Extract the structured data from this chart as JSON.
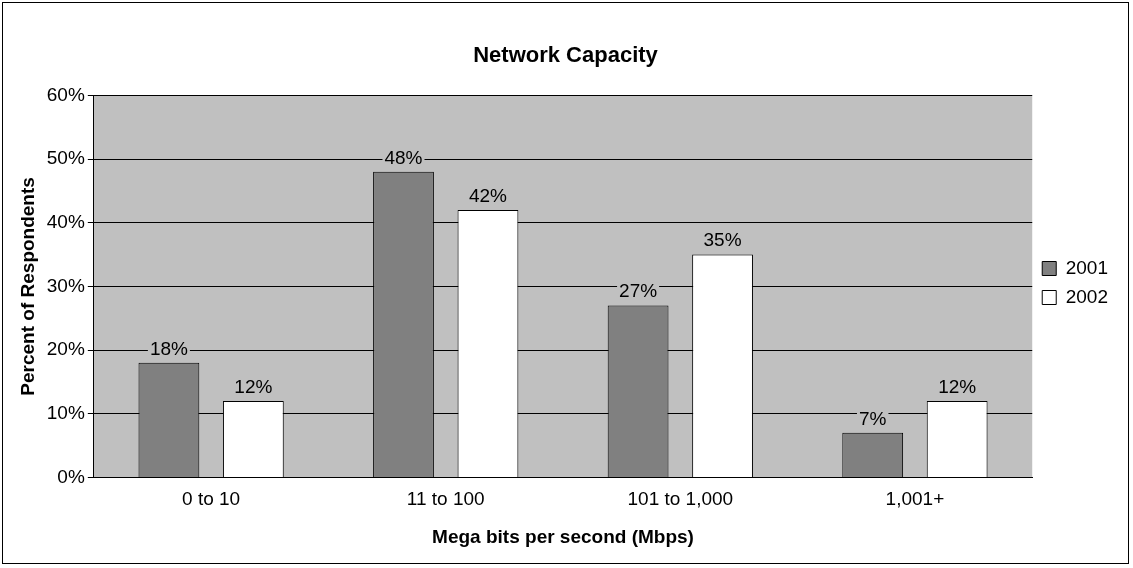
{
  "chart_data": {
    "type": "bar",
    "title": "Network Capacity",
    "xlabel": "Mega bits per second (Mbps)",
    "ylabel": "Percent of Respondents",
    "categories": [
      "0 to 10",
      "11 to 100",
      "101 to 1,000",
      "1,001+"
    ],
    "series": [
      {
        "name": "2001",
        "color": "#808080",
        "values": [
          18,
          48,
          27,
          7
        ],
        "value_labels": [
          "18%",
          "48%",
          "27%",
          "7%"
        ]
      },
      {
        "name": "2002",
        "color": "#ffffff",
        "values": [
          12,
          42,
          35,
          12
        ],
        "value_labels": [
          "12%",
          "42%",
          "35%",
          "12%"
        ]
      }
    ],
    "ylim": [
      0,
      60
    ],
    "yticks": [
      {
        "value": 0,
        "label": "0%"
      },
      {
        "value": 10,
        "label": "10%"
      },
      {
        "value": 20,
        "label": "20%"
      },
      {
        "value": 30,
        "label": "30%"
      },
      {
        "value": 40,
        "label": "40%"
      },
      {
        "value": 50,
        "label": "50%"
      },
      {
        "value": 60,
        "label": "60%"
      }
    ],
    "grid": "y",
    "legend": "right"
  }
}
